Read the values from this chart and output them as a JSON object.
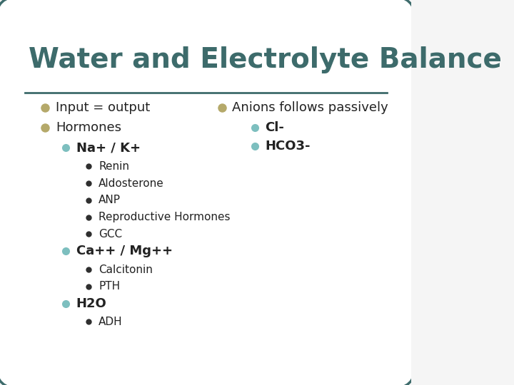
{
  "title": "Water and Electrolyte Balance",
  "title_color": "#3d6b6b",
  "title_fontsize": 28,
  "background_color": "#f5f5f5",
  "border_color": "#3d6b6b",
  "line_color": "#3d6b6b",
  "bullet_color_l1": "#b5a96a",
  "bullet_color_l2": "#7dbfbf",
  "bullet_color_l3": "#2f2f2f",
  "text_color": "#222222",
  "left_column": [
    {
      "level": 1,
      "text": "Input = output"
    },
    {
      "level": 1,
      "text": "Hormones"
    },
    {
      "level": 2,
      "text": "Na+ / K+"
    },
    {
      "level": 3,
      "text": "Renin"
    },
    {
      "level": 3,
      "text": "Aldosterone"
    },
    {
      "level": 3,
      "text": "ANP"
    },
    {
      "level": 3,
      "text": "Reproductive Hormones"
    },
    {
      "level": 3,
      "text": "GCC"
    },
    {
      "level": 2,
      "text": "Ca++ / Mg++"
    },
    {
      "level": 3,
      "text": "Calcitonin"
    },
    {
      "level": 3,
      "text": "PTH"
    },
    {
      "level": 2,
      "text": "H2O"
    },
    {
      "level": 3,
      "text": "ADH"
    }
  ],
  "right_column": [
    {
      "level": 1,
      "text": "Anions follows passively"
    },
    {
      "level": 2,
      "text": "Cl-"
    },
    {
      "level": 2,
      "text": "HCO3-"
    }
  ],
  "font_sizes": {
    "level1": 13,
    "level2": 13,
    "level3": 11
  },
  "indent": {
    "level1": 0.04,
    "level2": 0.09,
    "level3": 0.145
  },
  "line_heights": {
    "level1": 0.052,
    "level2": 0.048,
    "level3": 0.044
  }
}
